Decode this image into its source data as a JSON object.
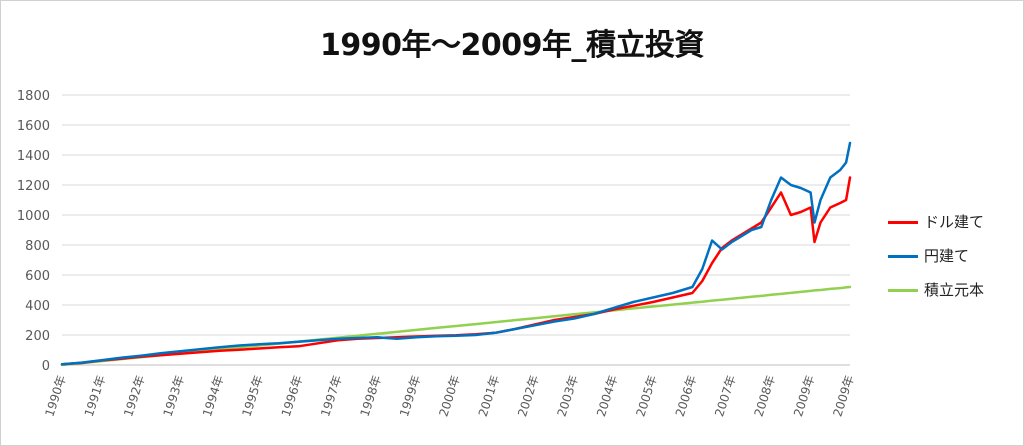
{
  "chart_data": {
    "type": "line",
    "title": "1990年〜2009年_積立投資",
    "xlabel": "",
    "ylabel": "",
    "ylim": [
      0,
      1800
    ],
    "yticks": [
      0,
      200,
      400,
      600,
      800,
      1000,
      1200,
      1400,
      1600,
      1800
    ],
    "x_tick_labels": [
      "1990年",
      "1991年",
      "1992年",
      "1993年",
      "1994年",
      "1995年",
      "1996年",
      "1997年",
      "1998年",
      "1999年",
      "2000年",
      "2001年",
      "2002年",
      "2003年",
      "2004年",
      "2005年",
      "2006年",
      "2007年",
      "2008年",
      "2009年",
      "2009年"
    ],
    "x": [
      1990.0,
      1990.5,
      1991.0,
      1991.5,
      1992.0,
      1992.5,
      1993.0,
      1993.5,
      1994.0,
      1994.5,
      1995.0,
      1995.5,
      1996.0,
      1996.5,
      1997.0,
      1997.5,
      1998.0,
      1998.5,
      1999.0,
      1999.5,
      2000.0,
      2000.5,
      2001.0,
      2001.5,
      2002.0,
      2002.5,
      2003.0,
      2003.5,
      2004.0,
      2004.5,
      2005.0,
      2005.5,
      2006.0,
      2006.25,
      2006.5,
      2006.75,
      2007.0,
      2007.25,
      2007.5,
      2007.75,
      2008.0,
      2008.25,
      2008.5,
      2008.75,
      2009.0,
      2009.1,
      2009.25,
      2009.5,
      2009.75,
      2009.9,
      2010.0
    ],
    "series": [
      {
        "name": "ドル建て",
        "color": "#ff0000",
        "values": [
          5,
          14,
          30,
          42,
          55,
          65,
          75,
          85,
          95,
          102,
          110,
          118,
          125,
          145,
          165,
          175,
          180,
          185,
          190,
          195,
          198,
          205,
          215,
          240,
          270,
          300,
          320,
          340,
          370,
          395,
          420,
          450,
          480,
          560,
          680,
          780,
          830,
          870,
          910,
          950,
          1050,
          1150,
          1000,
          1020,
          1050,
          820,
          950,
          1050,
          1080,
          1100,
          1250
        ]
      },
      {
        "name": "円建て",
        "color": "#0070c0",
        "values": [
          5,
          16,
          32,
          48,
          62,
          78,
          92,
          105,
          118,
          130,
          138,
          145,
          155,
          165,
          175,
          180,
          185,
          175,
          185,
          192,
          195,
          200,
          215,
          240,
          265,
          290,
          310,
          340,
          380,
          420,
          450,
          480,
          520,
          640,
          830,
          770,
          820,
          860,
          900,
          920,
          1100,
          1250,
          1200,
          1180,
          1150,
          950,
          1100,
          1250,
          1300,
          1350,
          1480
        ]
      },
      {
        "name": "積立元本",
        "color": "#92d050",
        "values": [
          0,
          13,
          26,
          39,
          52,
          65,
          78,
          91,
          104,
          117,
          130,
          143,
          156,
          169,
          182,
          195,
          208,
          221,
          234,
          247,
          260,
          273,
          286,
          299,
          312,
          325,
          338,
          351,
          364,
          377,
          390,
          403,
          416,
          422,
          429,
          435,
          442,
          448,
          455,
          461,
          468,
          474,
          481,
          487,
          494,
          497,
          500,
          507,
          513,
          517,
          520
        ]
      }
    ],
    "legend_position": "right",
    "grid": true
  }
}
